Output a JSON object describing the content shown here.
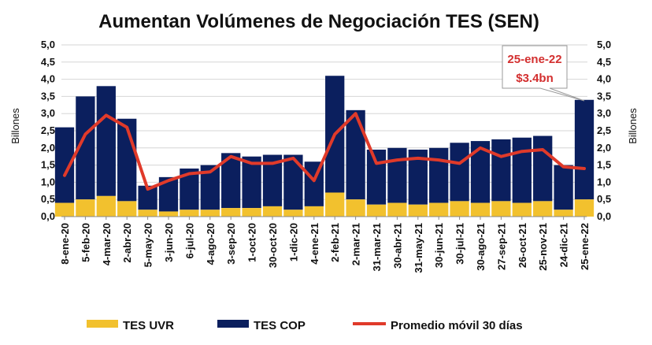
{
  "chart_data": {
    "type": "bar",
    "title": "Aumentan Volúmenes de Negociación TES (SEN)",
    "ylabel_left": "Billones",
    "ylabel_right": "Billones",
    "ylim": [
      0,
      5
    ],
    "yticks": [
      "0,0",
      "0,5",
      "1,0",
      "1,5",
      "2,0",
      "2,5",
      "3,0",
      "3,5",
      "4,0",
      "4,5",
      "5,0"
    ],
    "x_tick_labels": [
      "8-ene-20",
      "5-feb-20",
      "4-mar-20",
      "2-abr-20",
      "5-may-20",
      "3-jun-20",
      "6-jul-20",
      "4-ago-20",
      "3-sep-20",
      "1-oct-20",
      "30-oct-20",
      "1-dic-20",
      "4-ene-21",
      "2-feb-21",
      "2-mar-21",
      "31-mar-21",
      "30-abr-21",
      "31-may-21",
      "30-jun-21",
      "30-jul-21",
      "30-ago-21",
      "27-sep-21",
      "26-oct-21",
      "25-nov-21",
      "24-dic-21",
      "25-ene-22"
    ],
    "series": [
      {
        "name": "TES UVR",
        "color": "#f2c12e",
        "kind": "bar",
        "values": [
          0.4,
          0.5,
          0.6,
          0.45,
          0.2,
          0.15,
          0.2,
          0.2,
          0.25,
          0.25,
          0.3,
          0.2,
          0.3,
          0.7,
          0.5,
          0.35,
          0.4,
          0.35,
          0.4,
          0.45,
          0.4,
          0.45,
          0.4,
          0.45,
          0.2,
          0.5
        ]
      },
      {
        "name": "TES COP",
        "color": "#0b1f5e",
        "kind": "bar",
        "values": [
          2.2,
          3.0,
          3.2,
          2.4,
          0.7,
          1.0,
          1.2,
          1.3,
          1.6,
          1.5,
          1.5,
          1.6,
          1.3,
          3.4,
          2.6,
          1.6,
          1.6,
          1.6,
          1.6,
          1.7,
          1.8,
          1.8,
          1.9,
          1.9,
          1.3,
          2.9
        ]
      },
      {
        "name": "Promedio móvil 30 días",
        "color": "#e03a2a",
        "kind": "line",
        "values": [
          1.2,
          2.4,
          2.95,
          2.6,
          0.8,
          1.05,
          1.25,
          1.3,
          1.75,
          1.55,
          1.55,
          1.7,
          1.05,
          2.4,
          3.0,
          1.55,
          1.65,
          1.7,
          1.65,
          1.55,
          2.0,
          1.75,
          1.9,
          1.95,
          1.45,
          1.4
        ]
      }
    ],
    "annotation": {
      "lines": [
        "25-ene-22",
        "$3.4bn"
      ],
      "color": "#d32f2f"
    },
    "grid": true,
    "legend_position": "bottom"
  }
}
